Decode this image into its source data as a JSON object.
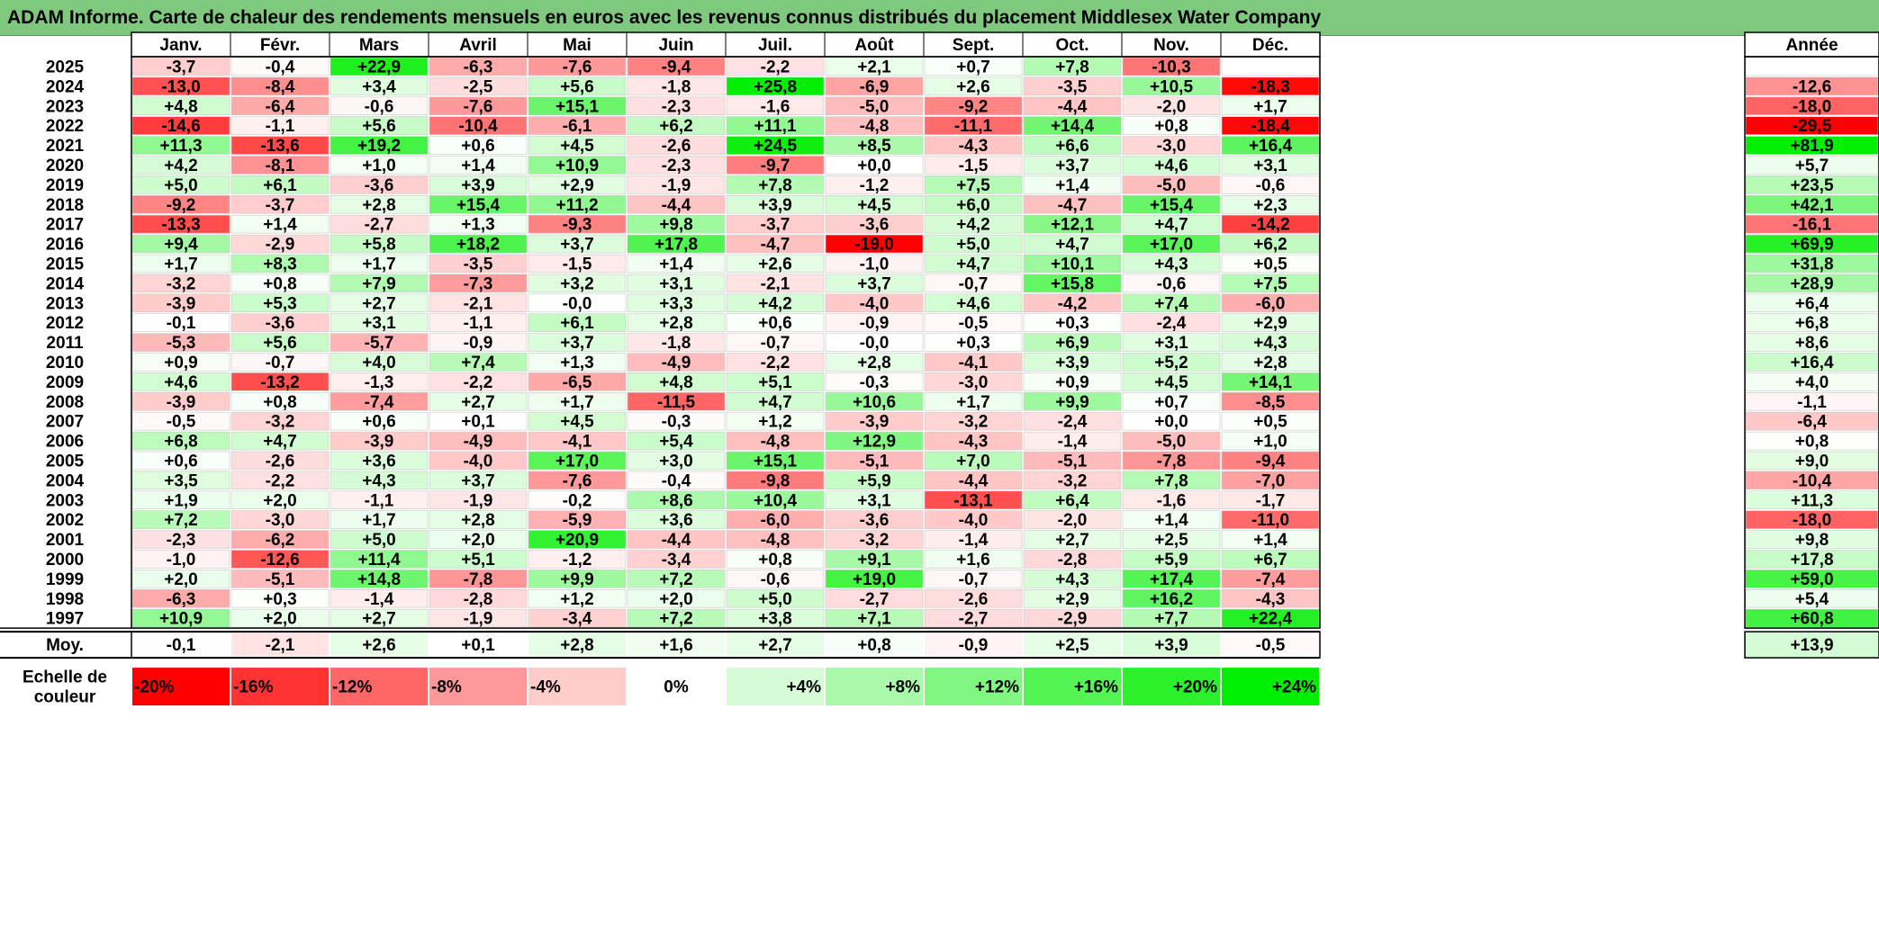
{
  "title": "ADAM Informe. Carte de chaleur des rendements mensuels en euros avec les revenus connus distribués du placement Middlesex Water Company",
  "colors": {
    "title_bg": "#7fc97f",
    "negative_max": "#ff0000",
    "neutral": "#ffffff",
    "positive_max": "#00ee00"
  },
  "chart_data": {
    "type": "heatmap",
    "title": "ADAM Informe. Carte de chaleur des rendements mensuels en euros avec les revenus connus distribués du placement Middlesex Water Company",
    "months": [
      "Janv.",
      "Févr.",
      "Mars",
      "Avril",
      "Mai",
      "Juin",
      "Juil.",
      "Août",
      "Sept.",
      "Oct.",
      "Nov.",
      "Déc."
    ],
    "year_header": "Année",
    "rows": [
      {
        "year": "2025",
        "values": [
          "-3,7",
          "-0,4",
          "+22,9",
          "-6,3",
          "-7,6",
          "-9,4",
          "-2,2",
          "+2,1",
          "+0,7",
          "+7,8",
          "-10,3",
          ""
        ],
        "annual": ""
      },
      {
        "year": "2024",
        "values": [
          "-13,0",
          "-8,4",
          "+3,4",
          "-2,5",
          "+5,6",
          "-1,8",
          "+25,8",
          "-6,9",
          "+2,6",
          "-3,5",
          "+10,5",
          "-18,3"
        ],
        "annual": "-12,6"
      },
      {
        "year": "2023",
        "values": [
          "+4,8",
          "-6,4",
          "-0,6",
          "-7,6",
          "+15,1",
          "-2,3",
          "-1,6",
          "-5,0",
          "-9,2",
          "-4,4",
          "-2,0",
          "+1,7"
        ],
        "annual": "-18,0"
      },
      {
        "year": "2022",
        "values": [
          "-14,6",
          "-1,1",
          "+5,6",
          "-10,4",
          "-6,1",
          "+6,2",
          "+11,1",
          "-4,8",
          "-11,1",
          "+14,4",
          "+0,8",
          "-18,4"
        ],
        "annual": "-29,5"
      },
      {
        "year": "2021",
        "values": [
          "+11,3",
          "-13,6",
          "+19,2",
          "+0,6",
          "+4,5",
          "-2,6",
          "+24,5",
          "+8,5",
          "-4,3",
          "+6,6",
          "-3,0",
          "+16,4"
        ],
        "annual": "+81,9"
      },
      {
        "year": "2020",
        "values": [
          "+4,2",
          "-8,1",
          "+1,0",
          "+1,4",
          "+10,9",
          "-2,3",
          "-9,7",
          "+0,0",
          "-1,5",
          "+3,7",
          "+4,6",
          "+3,1"
        ],
        "annual": "+5,7"
      },
      {
        "year": "2019",
        "values": [
          "+5,0",
          "+6,1",
          "-3,6",
          "+3,9",
          "+2,9",
          "-1,9",
          "+7,8",
          "-1,2",
          "+7,5",
          "+1,4",
          "-5,0",
          "-0,6"
        ],
        "annual": "+23,5"
      },
      {
        "year": "2018",
        "values": [
          "-9,2",
          "-3,7",
          "+2,8",
          "+15,4",
          "+11,2",
          "-4,4",
          "+3,9",
          "+4,5",
          "+6,0",
          "-4,7",
          "+15,4",
          "+2,3"
        ],
        "annual": "+42,1"
      },
      {
        "year": "2017",
        "values": [
          "-13,3",
          "+1,4",
          "-2,7",
          "+1,3",
          "-9,3",
          "+9,8",
          "-3,7",
          "-3,6",
          "+4,2",
          "+12,1",
          "+4,7",
          "-14,2"
        ],
        "annual": "-16,1"
      },
      {
        "year": "2016",
        "values": [
          "+9,4",
          "-2,9",
          "+5,8",
          "+18,2",
          "+3,7",
          "+17,8",
          "-4,7",
          "-19,0",
          "+5,0",
          "+4,7",
          "+17,0",
          "+6,2"
        ],
        "annual": "+69,9"
      },
      {
        "year": "2015",
        "values": [
          "+1,7",
          "+8,3",
          "+1,7",
          "-3,5",
          "-1,5",
          "+1,4",
          "+2,6",
          "-1,0",
          "+4,7",
          "+10,1",
          "+4,3",
          "+0,5"
        ],
        "annual": "+31,8"
      },
      {
        "year": "2014",
        "values": [
          "-3,2",
          "+0,8",
          "+7,9",
          "-7,3",
          "+3,2",
          "+3,1",
          "-2,1",
          "+3,7",
          "-0,7",
          "+15,8",
          "-0,6",
          "+7,5"
        ],
        "annual": "+28,9"
      },
      {
        "year": "2013",
        "values": [
          "-3,9",
          "+5,3",
          "+2,7",
          "-2,1",
          "-0,0",
          "+3,3",
          "+4,2",
          "-4,0",
          "+4,6",
          "-4,2",
          "+7,4",
          "-6,0"
        ],
        "annual": "+6,4"
      },
      {
        "year": "2012",
        "values": [
          "-0,1",
          "-3,6",
          "+3,1",
          "-1,1",
          "+6,1",
          "+2,8",
          "+0,6",
          "-0,9",
          "-0,5",
          "+0,3",
          "-2,4",
          "+2,9"
        ],
        "annual": "+6,8"
      },
      {
        "year": "2011",
        "values": [
          "-5,3",
          "+5,6",
          "-5,7",
          "-0,9",
          "+3,7",
          "-1,8",
          "-0,7",
          "-0,0",
          "+0,3",
          "+6,9",
          "+3,1",
          "+4,3"
        ],
        "annual": "+8,6"
      },
      {
        "year": "2010",
        "values": [
          "+0,9",
          "-0,7",
          "+4,0",
          "+7,4",
          "+1,3",
          "-4,9",
          "-2,2",
          "+2,8",
          "-4,1",
          "+3,9",
          "+5,2",
          "+2,8"
        ],
        "annual": "+16,4"
      },
      {
        "year": "2009",
        "values": [
          "+4,6",
          "-13,2",
          "-1,3",
          "-2,2",
          "-6,5",
          "+4,8",
          "+5,1",
          "-0,3",
          "-3,0",
          "+0,9",
          "+4,5",
          "+14,1"
        ],
        "annual": "+4,0"
      },
      {
        "year": "2008",
        "values": [
          "-3,9",
          "+0,8",
          "-7,4",
          "+2,7",
          "+1,7",
          "-11,5",
          "+4,7",
          "+10,6",
          "+1,7",
          "+9,9",
          "+0,7",
          "-8,5"
        ],
        "annual": "-1,1"
      },
      {
        "year": "2007",
        "values": [
          "-0,5",
          "-3,2",
          "+0,6",
          "+0,1",
          "+4,5",
          "-0,3",
          "+1,2",
          "-3,9",
          "-3,2",
          "-2,4",
          "+0,0",
          "+0,5"
        ],
        "annual": "-6,4"
      },
      {
        "year": "2006",
        "values": [
          "+6,8",
          "+4,7",
          "-3,9",
          "-4,9",
          "-4,1",
          "+5,4",
          "-4,8",
          "+12,9",
          "-4,3",
          "-1,4",
          "-5,0",
          "+1,0"
        ],
        "annual": "+0,8"
      },
      {
        "year": "2005",
        "values": [
          "+0,6",
          "-2,6",
          "+3,6",
          "-4,0",
          "+17,0",
          "+3,0",
          "+15,1",
          "-5,1",
          "+7,0",
          "-5,1",
          "-7,8",
          "-9,4"
        ],
        "annual": "+9,0"
      },
      {
        "year": "2004",
        "values": [
          "+3,5",
          "-2,2",
          "+4,3",
          "+3,7",
          "-7,6",
          "-0,4",
          "-9,8",
          "+5,9",
          "-4,4",
          "-3,2",
          "+7,8",
          "-7,0"
        ],
        "annual": "-10,4"
      },
      {
        "year": "2003",
        "values": [
          "+1,9",
          "+2,0",
          "-1,1",
          "-1,9",
          "-0,2",
          "+8,6",
          "+10,4",
          "+3,1",
          "-13,1",
          "+6,4",
          "-1,6",
          "-1,7"
        ],
        "annual": "+11,3"
      },
      {
        "year": "2002",
        "values": [
          "+7,2",
          "-3,0",
          "+1,7",
          "+2,8",
          "-5,9",
          "+3,6",
          "-6,0",
          "-3,6",
          "-4,0",
          "-2,0",
          "+1,4",
          "-11,0"
        ],
        "annual": "-18,0"
      },
      {
        "year": "2001",
        "values": [
          "-2,3",
          "-6,2",
          "+5,0",
          "+2,0",
          "+20,9",
          "-4,4",
          "-4,8",
          "-3,2",
          "-1,4",
          "+2,7",
          "+2,5",
          "+1,4"
        ],
        "annual": "+9,8"
      },
      {
        "year": "2000",
        "values": [
          "-1,0",
          "-12,6",
          "+11,4",
          "+5,1",
          "-1,2",
          "-3,4",
          "+0,8",
          "+9,1",
          "+1,6",
          "-2,8",
          "+5,9",
          "+6,7"
        ],
        "annual": "+17,8"
      },
      {
        "year": "1999",
        "values": [
          "+2,0",
          "-5,1",
          "+14,8",
          "-7,8",
          "+9,9",
          "+7,2",
          "-0,6",
          "+19,0",
          "-0,7",
          "+4,3",
          "+17,4",
          "-7,4"
        ],
        "annual": "+59,0"
      },
      {
        "year": "1998",
        "values": [
          "-6,3",
          "+0,3",
          "-1,4",
          "-2,8",
          "+1,2",
          "+2,0",
          "+5,0",
          "-2,7",
          "-2,6",
          "+2,9",
          "+16,2",
          "-4,3"
        ],
        "annual": "+5,4"
      },
      {
        "year": "1997",
        "values": [
          "+10,9",
          "+2,0",
          "+2,7",
          "-1,9",
          "-3,4",
          "+7,2",
          "+3,8",
          "+7,1",
          "-2,7",
          "-2,9",
          "+7,7",
          "+22,4"
        ],
        "annual": "+60,8"
      }
    ],
    "average": {
      "label": "Moy.",
      "values": [
        "-0,1",
        "-2,1",
        "+2,6",
        "+0,1",
        "+2,8",
        "+1,6",
        "+2,7",
        "+0,8",
        "-0,9",
        "+2,5",
        "+3,9",
        "-0,5"
      ],
      "annual": "+13,9"
    },
    "scale": {
      "label_line1": "Echelle de",
      "label_line2": "couleur",
      "stops": [
        "-20%",
        "-16%",
        "-12%",
        "-8%",
        "-4%",
        "0%",
        "+4%",
        "+8%",
        "+12%",
        "+16%",
        "+20%",
        "+24%"
      ]
    }
  }
}
